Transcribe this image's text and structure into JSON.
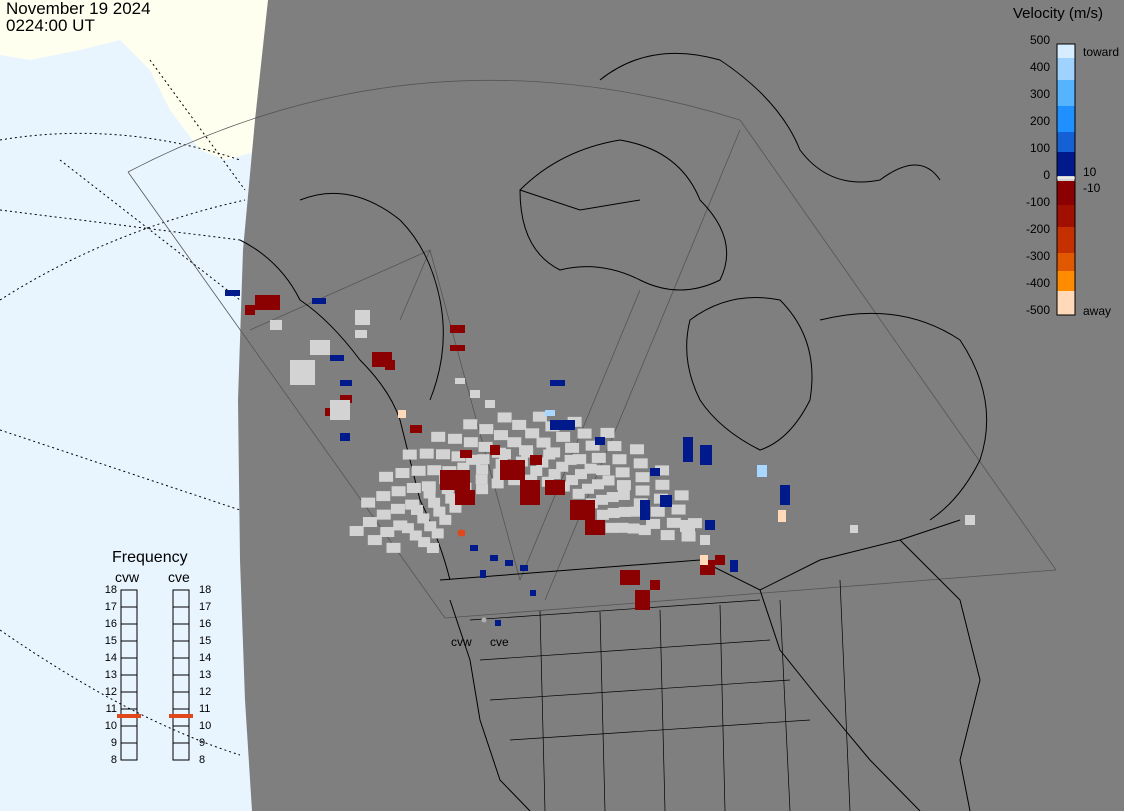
{
  "header": {
    "date": "November 19 2024",
    "time": "0224:00 UT"
  },
  "legend": {
    "title": "Velocity (m/s)",
    "ticks": [
      "500",
      "400",
      "300",
      "200",
      "100",
      "0",
      "-100",
      "-200",
      "-300",
      "-400",
      "-500"
    ],
    "upper_small": "10",
    "lower_small": "-10",
    "toward_label": "toward",
    "away_label": "away",
    "colors": {
      "toward": [
        "#d6ecff",
        "#9fd2ff",
        "#56b4ff",
        "#1e90ff",
        "#1560d4",
        "#0a3aa8",
        "#001a8c"
      ],
      "gray": "#d3d3d3",
      "away": [
        "#8b0000",
        "#a01000",
        "#c43000",
        "#e05800",
        "#ff8c00",
        "#ffb870",
        "#ffd9b8"
      ]
    }
  },
  "frequency": {
    "title": "Frequency",
    "radars": [
      "cvw",
      "cve"
    ],
    "ticks": [
      "18",
      "17",
      "16",
      "15",
      "14",
      "13",
      "12",
      "11",
      "10",
      "9",
      "8"
    ],
    "cvw_value": 11,
    "cve_value": 11
  },
  "radar_labels": [
    "cvw",
    "cve"
  ],
  "map_colors": {
    "ocean": "#eef7ff",
    "land": "#fffff0",
    "night": "#7f7f7f",
    "marker": "#e0471a"
  }
}
